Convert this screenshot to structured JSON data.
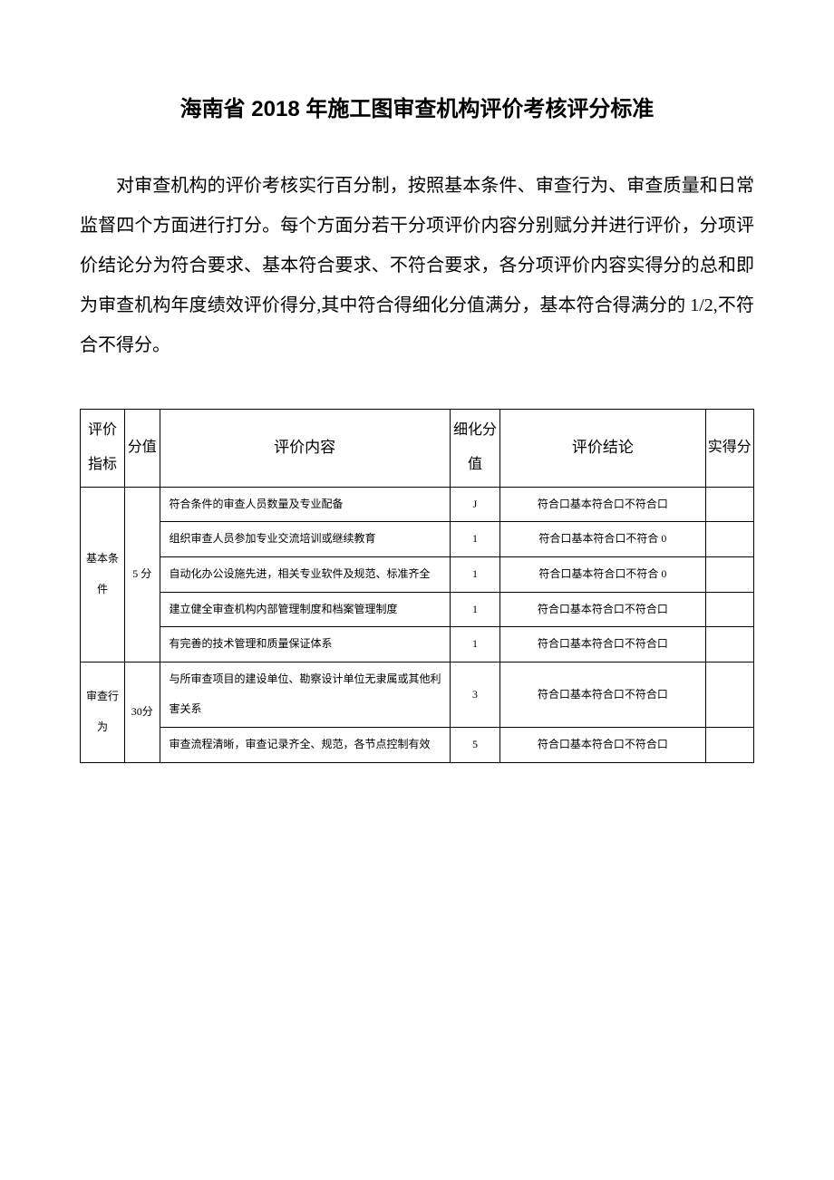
{
  "title": "海南省 2018 年施工图审查机构评价考核评分标准",
  "intro": "对审查机构的评价考核实行百分制，按照基本条件、审查行为、审查质量和日常监督四个方面进行打分。每个方面分若干分项评价内容分别赋分并进行评价，分项评价结论分为符合要求、基本符合要求、不符合要求，各分项评价内容实得分的总和即为审查机构年度绩效评价得分,其中符合得细化分值满分，基本符合得满分的 1/2,不符合不得分。",
  "table": {
    "headers": {
      "indicator": "评价指标",
      "score": "分值",
      "content": "评价内容",
      "detail": "细化分值",
      "conclusion": "评价结论",
      "actual": "实得分"
    },
    "groups": [
      {
        "indicator": "基本条件",
        "score": "5 分",
        "rows": [
          {
            "content": "符合条件的审查人员数量及专业配备",
            "detail": "J",
            "conclusion": "符合口基本符合口不符合口"
          },
          {
            "content": "组织审查人员参加专业交流培训或继续教育",
            "detail": "1",
            "conclusion": "符合口基本符合口不符合 0"
          },
          {
            "content": "自动化办公设施先进，相关专业软件及规范、标准齐全",
            "detail": "1",
            "conclusion": "符合口基本符合口不符合 0"
          },
          {
            "content": "建立健全审查机构内部管理制度和档案管理制度",
            "detail": "1",
            "conclusion": "符合口基本符合口不符合口"
          },
          {
            "content": "有完善的技术管理和质量保证体系",
            "detail": "1",
            "conclusion": "符合口基本符合口不符合口"
          }
        ]
      },
      {
        "indicator": "审查行为",
        "score": "30分",
        "rows": [
          {
            "content": "与所审查项目的建设单位、勘察设计单位无隶属或其他利害关系",
            "detail": "3",
            "conclusion": "符合口基本符合口不符合口"
          },
          {
            "content": "审查流程清晰，审查记录齐全、规范，各节点控制有效",
            "detail": "5",
            "conclusion": "符合口基本符合口不符合口"
          }
        ]
      }
    ]
  },
  "style": {
    "background_color": "#ffffff",
    "text_color": "#000000",
    "border_color": "#000000",
    "title_fontsize": 24,
    "intro_fontsize": 20,
    "header_fontsize": 17,
    "body_fontsize": 12
  }
}
